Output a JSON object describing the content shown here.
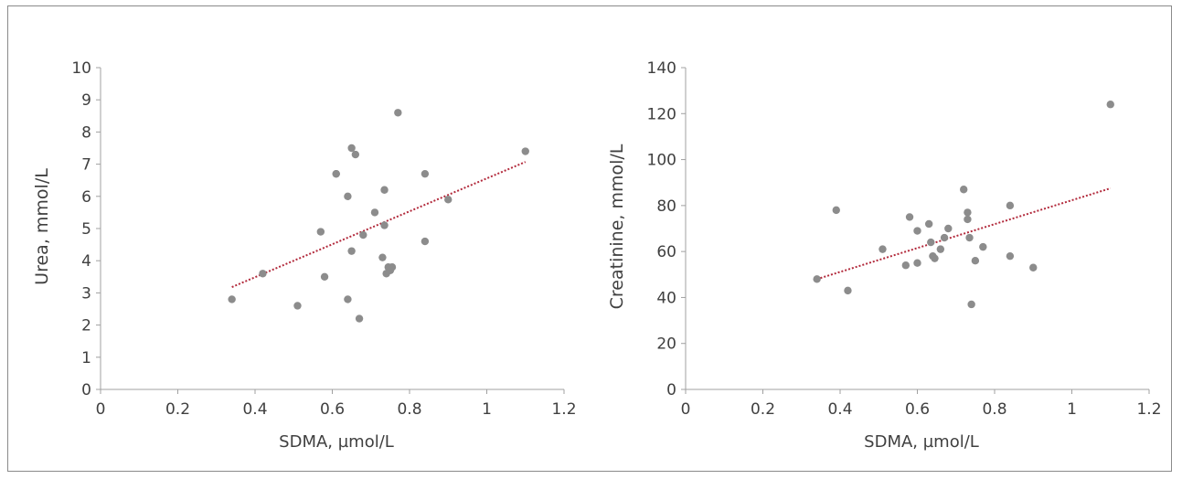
{
  "colors": {
    "points": "#8c8c8c",
    "trendline": "#b22a3c",
    "axis": "#a0a0a0",
    "text": "#404040"
  },
  "chart_data": [
    {
      "type": "scatter",
      "title": "",
      "xlabel": "SDMA, µmol/L",
      "ylabel": "Urea, mmol/L",
      "xlim": [
        0,
        1.2
      ],
      "ylim": [
        0,
        10
      ],
      "xticks": [
        "0",
        "0.2",
        "0.4",
        "0.6",
        "0.8",
        "1",
        "1.2"
      ],
      "yticks": [
        "0",
        "1",
        "2",
        "3",
        "4",
        "5",
        "6",
        "7",
        "8",
        "9",
        "10"
      ],
      "grid": false,
      "points": [
        [
          0.34,
          2.8
        ],
        [
          0.42,
          3.6
        ],
        [
          0.51,
          2.6
        ],
        [
          0.57,
          4.9
        ],
        [
          0.58,
          3.5
        ],
        [
          0.61,
          6.7
        ],
        [
          0.61,
          6.7
        ],
        [
          0.64,
          6.0
        ],
        [
          0.64,
          2.8
        ],
        [
          0.65,
          4.3
        ],
        [
          0.65,
          7.5
        ],
        [
          0.66,
          7.3
        ],
        [
          0.67,
          2.2
        ],
        [
          0.68,
          4.8
        ],
        [
          0.71,
          5.5
        ],
        [
          0.73,
          4.1
        ],
        [
          0.735,
          5.1
        ],
        [
          0.735,
          6.2
        ],
        [
          0.74,
          3.6
        ],
        [
          0.745,
          3.8
        ],
        [
          0.75,
          3.7
        ],
        [
          0.755,
          3.8
        ],
        [
          0.77,
          8.6
        ],
        [
          0.84,
          6.7
        ],
        [
          0.84,
          4.6
        ],
        [
          0.9,
          5.9
        ],
        [
          1.1,
          7.4
        ]
      ],
      "trendline": {
        "type": "linear",
        "x": [
          0.34,
          1.1
        ],
        "y": [
          3.18,
          7.07
        ]
      }
    },
    {
      "type": "scatter",
      "title": "",
      "xlabel": "SDMA, µmol/L",
      "ylabel": "Creatinine, mmol/L",
      "xlim": [
        0,
        1.2
      ],
      "ylim": [
        0,
        140
      ],
      "xticks": [
        "0",
        "0.2",
        "0.4",
        "0.6",
        "0.8",
        "1",
        "1.2"
      ],
      "yticks": [
        "0",
        "20",
        "40",
        "60",
        "80",
        "100",
        "120",
        "140"
      ],
      "grid": false,
      "points": [
        [
          0.34,
          48
        ],
        [
          0.39,
          78
        ],
        [
          0.42,
          43
        ],
        [
          0.51,
          61
        ],
        [
          0.57,
          54
        ],
        [
          0.58,
          75
        ],
        [
          0.6,
          55
        ],
        [
          0.6,
          69
        ],
        [
          0.63,
          72
        ],
        [
          0.635,
          64
        ],
        [
          0.64,
          58
        ],
        [
          0.645,
          57
        ],
        [
          0.66,
          61
        ],
        [
          0.67,
          66
        ],
        [
          0.68,
          70
        ],
        [
          0.72,
          87
        ],
        [
          0.73,
          77
        ],
        [
          0.73,
          74
        ],
        [
          0.735,
          66
        ],
        [
          0.74,
          37
        ],
        [
          0.75,
          56
        ],
        [
          0.77,
          62
        ],
        [
          0.84,
          58
        ],
        [
          0.84,
          80
        ],
        [
          0.9,
          53
        ],
        [
          1.1,
          124
        ]
      ],
      "trendline": {
        "type": "linear",
        "x": [
          0.34,
          1.1
        ],
        "y": [
          48,
          87.5
        ]
      }
    }
  ]
}
